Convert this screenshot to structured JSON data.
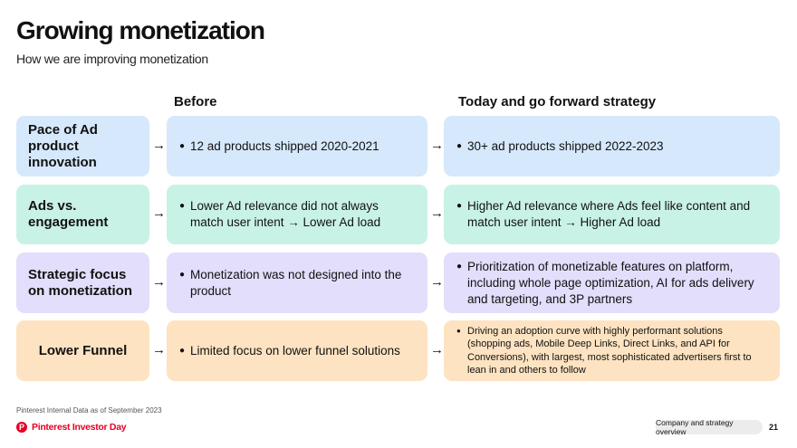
{
  "header": {
    "title": "Growing monetization",
    "subtitle": "How we are improving monetization"
  },
  "columns": {
    "before": "Before",
    "today": "Today and go forward strategy"
  },
  "rows": [
    {
      "label": "Pace of Ad product innovation",
      "before": "12 ad products shipped 2020-2021",
      "today": "30+ ad products shipped 2022-2023"
    },
    {
      "label": "Ads vs. engagement",
      "before": "Lower Ad relevance did not always match user intent → Lower Ad load",
      "today": "Higher Ad relevance where Ads feel like content and match user intent → Higher Ad load"
    },
    {
      "label": "Strategic focus on monetization",
      "before": "Monetization was not designed into the product",
      "today": "Prioritization of monetizable features on platform, including whole page optimization, AI for ads delivery and targeting, and 3P partners"
    },
    {
      "label": "Lower Funnel",
      "before": "Limited focus on lower funnel solutions",
      "today": "Driving an adoption curve with highly performant solutions (shopping ads, Mobile Deep Links, Direct Links, and API for Conversions), with largest, most sophisticated advertisers first to lean in and others to follow"
    }
  ],
  "arrow_glyph": "→",
  "bullet_glyph": "●",
  "footer": {
    "footnote": "Pinterest Internal Data as of September 2023",
    "logo_text": "Pinterest Investor Day",
    "logo_mark": "P",
    "section_pill": "Company and strategy overview",
    "page_number": "21"
  },
  "colors": {
    "row1": "#d6e8fb",
    "row2": "#c9f2e7",
    "row3": "#e2defb",
    "row4": "#fde3c1",
    "brand_red": "#e60023"
  }
}
